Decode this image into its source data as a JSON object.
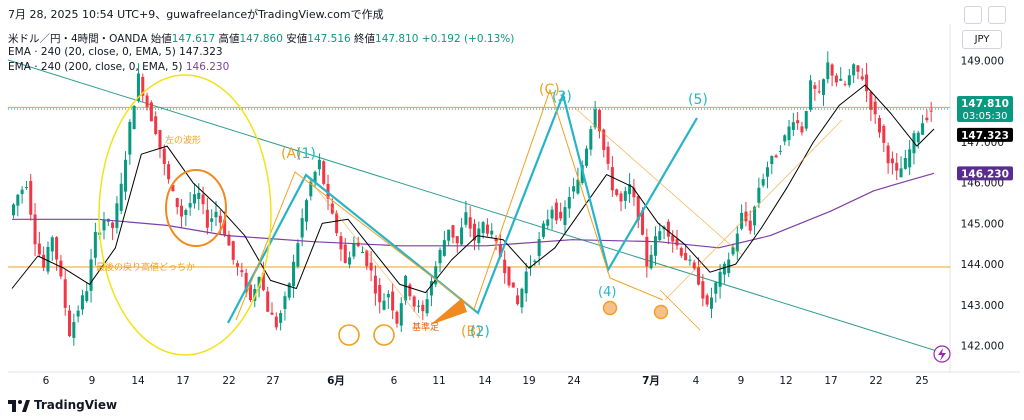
{
  "header": {
    "top_line": "7月 28, 2025 10:54 UTC+9、guwafreelanceがTradingView.comで作成",
    "symbol_line": "米ドル／円・4時間・OANDA",
    "open_label": "始値",
    "open": "147.617",
    "high_label": "高値",
    "high": "147.860",
    "low_label": "安値",
    "low": "147.516",
    "close_label": "終値",
    "close": "147.810",
    "change": "+0.192 (+0.13%)",
    "ema1": "EMA · 240 (20, close, 0, EMA, 5)",
    "ema1_value": "147.323",
    "ema2": "EMA · 240 (200, close, 0, EMA, 5)",
    "ema2_value": "146.230"
  },
  "currency_button": "JPY",
  "brand": "TradingView",
  "chart_data": {
    "type": "candlestick",
    "x_ticks": [
      "6",
      "9",
      "14",
      "17",
      "22",
      "27",
      "6月",
      "6",
      "11",
      "14",
      "19",
      "24",
      "7月",
      "4",
      "9",
      "12",
      "17",
      "22",
      "25"
    ],
    "y_ticks": [
      "142.000",
      "143.000",
      "144.000",
      "145.000",
      "146.000",
      "147.000",
      "148.000",
      "149.000"
    ],
    "ylim": [
      141.6,
      149.4
    ],
    "price_labels": [
      {
        "value": 147.81,
        "text": "147.810",
        "countdown": "03:05:30",
        "color": "#089981"
      },
      {
        "value": 147.323,
        "text": "147.323",
        "color": "#000000"
      },
      {
        "value": 146.23,
        "text": "146.230",
        "color": "#5b2c8f"
      }
    ],
    "annotations": [
      {
        "text": "左の波形",
        "color": "#f0a020"
      },
      {
        "text": "最後の戻り高値どっちか",
        "color": "#f0a020"
      },
      {
        "text": "基準足",
        "color": "#f06000"
      },
      {
        "text": "(A)",
        "color": "#f0a020"
      },
      {
        "text": "(1)",
        "color": "#26b5c8"
      },
      {
        "text": "(C)",
        "color": "#f0a020"
      },
      {
        "text": "(3)",
        "color": "#26b5c8"
      },
      {
        "text": "(5)",
        "color": "#26b5c8"
      },
      {
        "text": "(4)",
        "color": "#26b5c8"
      },
      {
        "text": "(B)",
        "color": "#f0a020"
      },
      {
        "text": "(2)",
        "color": "#26b5c8"
      }
    ],
    "colors": {
      "up": "#089981",
      "down": "#f23645",
      "ema20": "#000000",
      "ema200": "#7e3fa4",
      "wave": "#26b5c8",
      "abc": "#f0a020",
      "trendline": "#2e9e8f",
      "circle_left": "#f2e21a"
    },
    "price_path": [
      [
        0,
        145.2
      ],
      [
        1,
        145.7
      ],
      [
        2,
        146.0
      ],
      [
        3,
        144.6
      ],
      [
        4,
        143.9
      ],
      [
        5,
        144.7
      ],
      [
        6,
        143.6
      ],
      [
        7,
        142.3
      ],
      [
        8,
        142.9
      ],
      [
        9,
        143.4
      ],
      [
        10,
        144.7
      ],
      [
        11,
        145.1
      ],
      [
        12,
        144.9
      ],
      [
        13,
        145.9
      ],
      [
        14,
        147.4
      ],
      [
        15,
        148.6
      ],
      [
        16,
        147.9
      ],
      [
        17,
        147.3
      ],
      [
        18,
        146.4
      ],
      [
        19,
        145.7
      ],
      [
        20,
        145.2
      ],
      [
        21,
        145.5
      ],
      [
        22,
        145.7
      ],
      [
        23,
        145.0
      ],
      [
        24,
        145.3
      ],
      [
        25,
        144.8
      ],
      [
        26,
        144.1
      ],
      [
        27,
        143.7
      ],
      [
        28,
        143.1
      ],
      [
        29,
        143.8
      ],
      [
        30,
        142.9
      ],
      [
        31,
        142.5
      ],
      [
        32,
        143.1
      ],
      [
        33,
        144.0
      ],
      [
        34,
        145.1
      ],
      [
        35,
        146.0
      ],
      [
        36,
        146.5
      ],
      [
        37,
        145.5
      ],
      [
        38,
        144.8
      ],
      [
        39,
        144.0
      ],
      [
        40,
        144.5
      ],
      [
        41,
        144.3
      ],
      [
        42,
        143.8
      ],
      [
        43,
        143.0
      ],
      [
        44,
        143.3
      ],
      [
        45,
        142.6
      ],
      [
        46,
        143.6
      ],
      [
        47,
        143.0
      ],
      [
        48,
        142.8
      ],
      [
        49,
        143.6
      ],
      [
        50,
        144.3
      ],
      [
        51,
        144.9
      ],
      [
        52,
        144.5
      ],
      [
        53,
        145.2
      ],
      [
        54,
        144.6
      ],
      [
        55,
        145.0
      ],
      [
        56,
        144.7
      ],
      [
        57,
        144.2
      ],
      [
        58,
        143.6
      ],
      [
        59,
        143.0
      ],
      [
        60,
        143.8
      ],
      [
        61,
        144.2
      ],
      [
        62,
        144.9
      ],
      [
        63,
        145.4
      ],
      [
        64,
        145.0
      ],
      [
        65,
        145.7
      ],
      [
        66,
        146.0
      ],
      [
        67,
        146.9
      ],
      [
        68,
        147.9
      ],
      [
        69,
        146.8
      ],
      [
        70,
        145.9
      ],
      [
        71,
        145.5
      ],
      [
        72,
        145.9
      ],
      [
        73,
        145.2
      ],
      [
        74,
        144.0
      ],
      [
        75,
        144.6
      ],
      [
        76,
        145.0
      ],
      [
        77,
        144.6
      ],
      [
        78,
        144.3
      ],
      [
        79,
        144.0
      ],
      [
        80,
        143.6
      ],
      [
        81,
        142.9
      ],
      [
        82,
        143.5
      ],
      [
        83,
        143.9
      ],
      [
        84,
        144.4
      ],
      [
        85,
        145.2
      ],
      [
        86,
        144.9
      ],
      [
        87,
        145.9
      ],
      [
        88,
        146.4
      ],
      [
        89,
        146.7
      ],
      [
        90,
        147.1
      ],
      [
        91,
        147.6
      ],
      [
        92,
        147.3
      ],
      [
        93,
        148.4
      ],
      [
        94,
        148.1
      ],
      [
        95,
        148.9
      ],
      [
        96,
        148.5
      ],
      [
        97,
        148.4
      ],
      [
        98,
        148.8
      ],
      [
        99,
        148.6
      ],
      [
        100,
        147.9
      ],
      [
        101,
        147.3
      ],
      [
        102,
        146.6
      ],
      [
        103,
        146.2
      ],
      [
        104,
        146.5
      ],
      [
        105,
        147.1
      ],
      [
        106,
        147.5
      ],
      [
        107,
        147.8
      ]
    ],
    "ema20_path": [
      [
        0,
        143.4
      ],
      [
        3,
        144.2
      ],
      [
        6,
        143.9
      ],
      [
        9,
        143.5
      ],
      [
        12,
        144.4
      ],
      [
        15,
        146.7
      ],
      [
        18,
        146.9
      ],
      [
        21,
        146.0
      ],
      [
        24,
        145.4
      ],
      [
        27,
        144.7
      ],
      [
        30,
        143.6
      ],
      [
        33,
        143.4
      ],
      [
        36,
        145.0
      ],
      [
        39,
        145.1
      ],
      [
        42,
        144.3
      ],
      [
        45,
        143.5
      ],
      [
        48,
        143.3
      ],
      [
        51,
        144.1
      ],
      [
        54,
        144.7
      ],
      [
        57,
        144.6
      ],
      [
        60,
        143.9
      ],
      [
        63,
        144.4
      ],
      [
        66,
        145.3
      ],
      [
        69,
        146.2
      ],
      [
        72,
        145.9
      ],
      [
        75,
        145.0
      ],
      [
        78,
        144.5
      ],
      [
        81,
        143.8
      ],
      [
        84,
        144.0
      ],
      [
        87,
        144.9
      ],
      [
        90,
        145.9
      ],
      [
        93,
        147.0
      ],
      [
        96,
        147.9
      ],
      [
        99,
        148.4
      ],
      [
        102,
        147.7
      ],
      [
        105,
        146.9
      ],
      [
        107,
        147.32
      ]
    ],
    "ema200_path": [
      [
        0,
        145.1
      ],
      [
        10,
        145.1
      ],
      [
        18,
        144.95
      ],
      [
        25,
        144.7
      ],
      [
        35,
        144.55
      ],
      [
        45,
        144.45
      ],
      [
        55,
        144.45
      ],
      [
        65,
        144.6
      ],
      [
        75,
        144.55
      ],
      [
        82,
        144.4
      ],
      [
        88,
        144.7
      ],
      [
        95,
        145.3
      ],
      [
        100,
        145.8
      ],
      [
        104,
        146.05
      ],
      [
        107,
        146.23
      ]
    ]
  }
}
